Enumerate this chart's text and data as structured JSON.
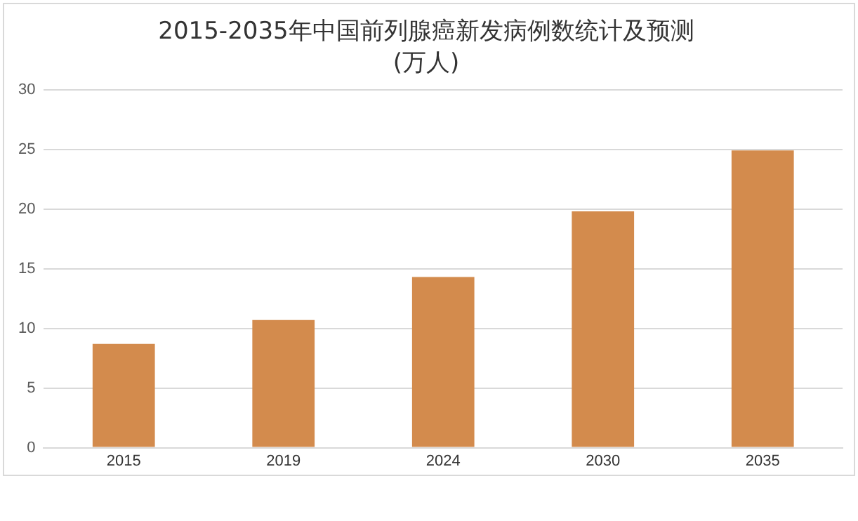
{
  "chart_data": {
    "type": "bar",
    "title": "2015-2035年中国前列腺癌新发病例数统计及预测",
    "subtitle": "(万人)",
    "categories": [
      "2015",
      "2019",
      "2024",
      "2030",
      "2035"
    ],
    "values": [
      8.7,
      10.7,
      14.3,
      19.8,
      24.9
    ],
    "color": "#d38b4d",
    "ylim": [
      0,
      30
    ],
    "yticks": [
      0,
      5,
      10,
      15,
      20,
      25,
      30
    ],
    "grid": "y"
  }
}
